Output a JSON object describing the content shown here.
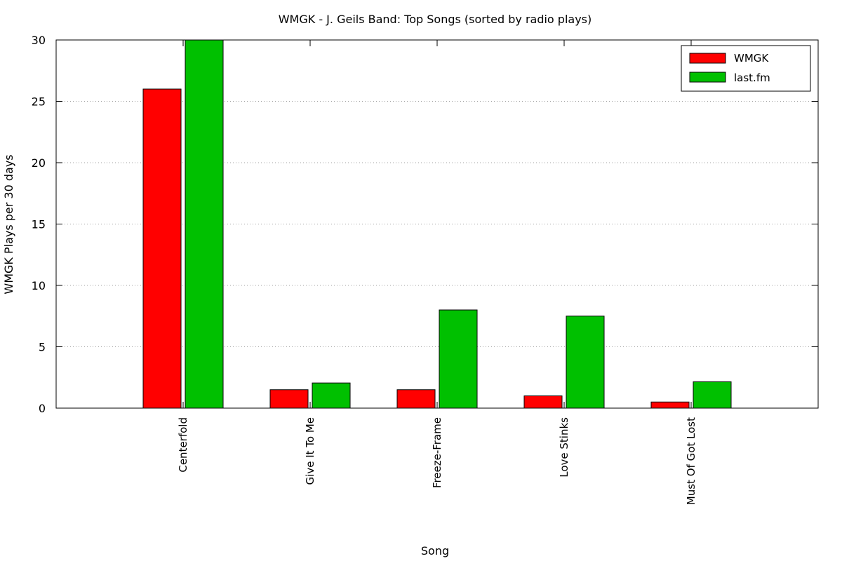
{
  "chart_data": {
    "type": "bar",
    "title": "WMGK - J. Geils Band: Top Songs (sorted by radio plays)",
    "xlabel": "Song",
    "ylabel": "WMGK Plays per 30 days",
    "ylim": [
      0,
      30
    ],
    "yticks": [
      0,
      5,
      10,
      15,
      20,
      25,
      30
    ],
    "grid": "horizontal dotted",
    "legend_position": "top-right",
    "categories": [
      "Centerfold",
      "Give It To Me",
      "Freeze-Frame",
      "Love Stinks",
      "Must Of Got Lost"
    ],
    "series": [
      {
        "name": "WMGK",
        "color": "#ff0000",
        "values": [
          26,
          1.5,
          1.5,
          1.0,
          0.5
        ]
      },
      {
        "name": "last.fm",
        "color": "#00c000",
        "values": [
          30,
          2.05,
          8.0,
          7.5,
          2.15
        ]
      }
    ]
  }
}
